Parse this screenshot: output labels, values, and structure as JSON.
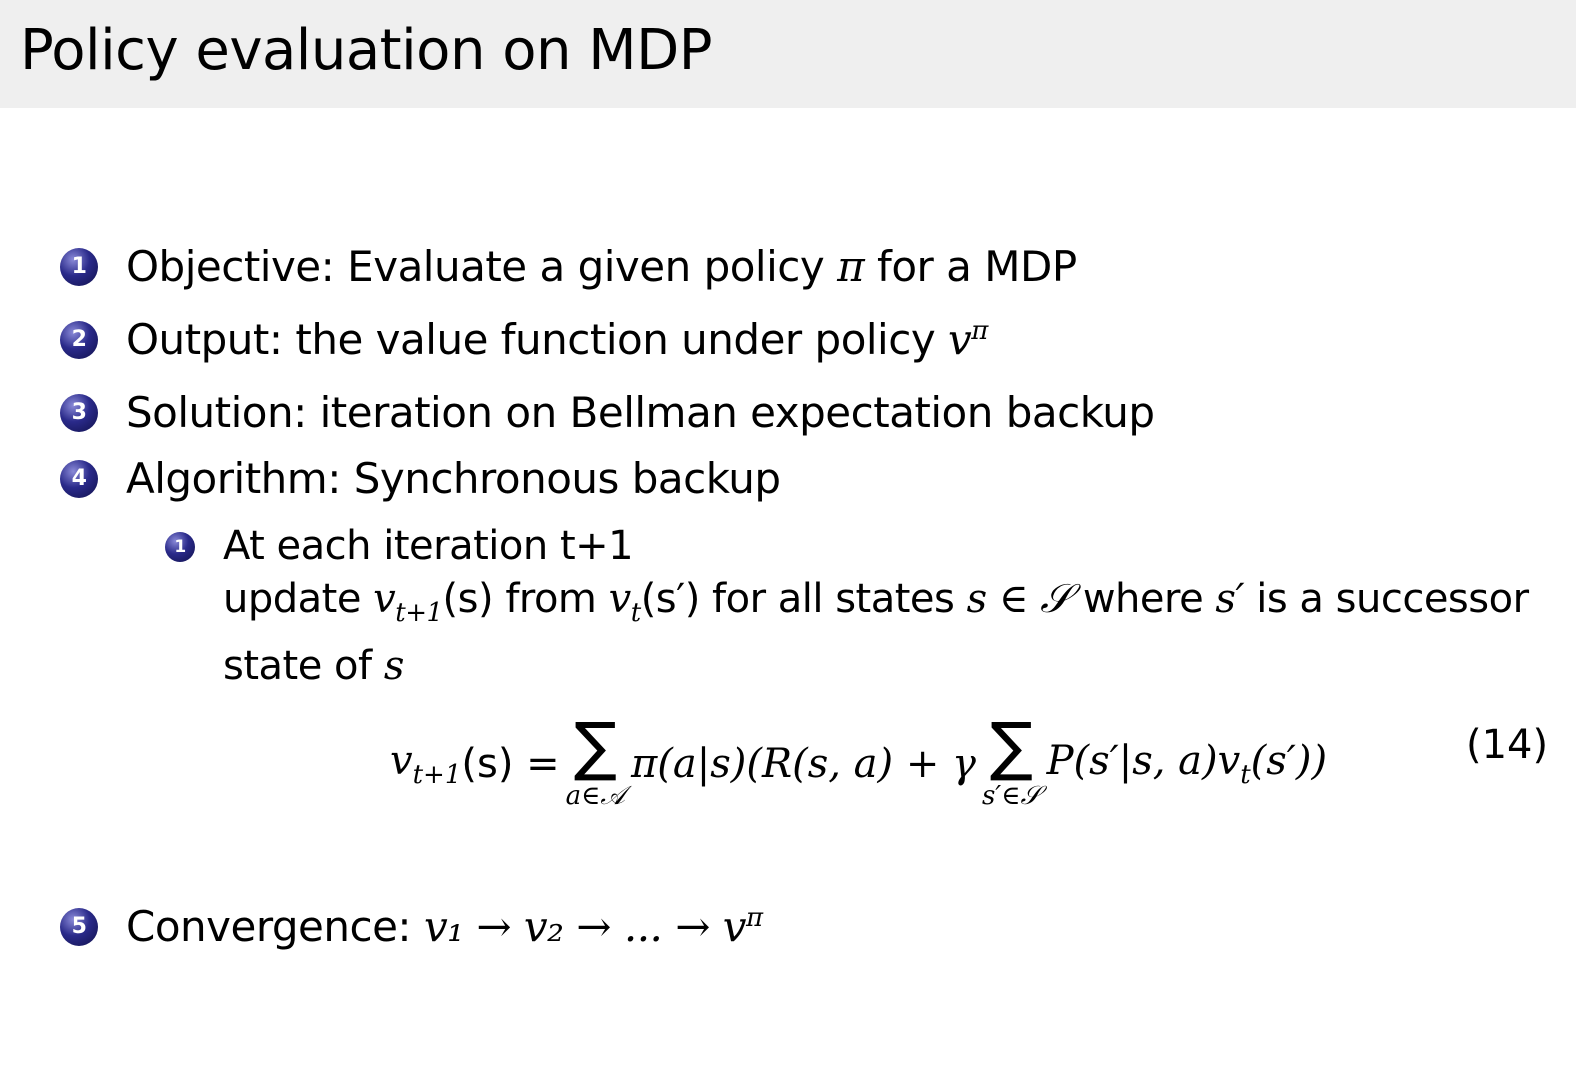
{
  "title": "Policy evaluation on MDP",
  "bullet_color": "#2a2a8a",
  "items": [
    {
      "number": "1",
      "label": "Objective:",
      "text": "Evaluate a given policy",
      "math": "π",
      "rest": "for a MDP"
    },
    {
      "number": "2",
      "label": "Output:",
      "text": "the value function under policy",
      "math": "v",
      "sup": "π"
    },
    {
      "number": "3",
      "label": "Solution:",
      "text": "iteration on Bellman expectation backup"
    },
    {
      "number": "4",
      "label": "Algorithm:",
      "text": "Synchronous backup"
    },
    {
      "number": "5",
      "label": "Convergence:",
      "math": "v₁ → v₂ → ... → v",
      "sup": "π"
    }
  ],
  "subitem": {
    "number": "1",
    "line1": "At each iteration t+1",
    "line2_a": "update",
    "line2_b": "v",
    "line2_b_sub": "t+1",
    "line2_c": "(s) from",
    "line2_d": "v",
    "line2_d_sub": "t",
    "line2_e": "(s′) for all states",
    "line2_f": "s ∈ 𝒮",
    "line2_g": "where",
    "line2_h": "s′",
    "line2_i": "is a successor",
    "line3_a": "state of",
    "line3_b": "s"
  },
  "equation": {
    "lhs": "v",
    "lhs_sub": "t+1",
    "lhs_arg": "(s) =",
    "sum1_limit": "a∈𝒜",
    "mid": "π(a|s)(R(s, a) + γ",
    "sum2_limit": "s′∈𝒮",
    "tail": "P(s′|s, a)v",
    "tail_sub": "t",
    "tail_end": "(s′))",
    "sigma": "∑",
    "number": "(14)"
  }
}
